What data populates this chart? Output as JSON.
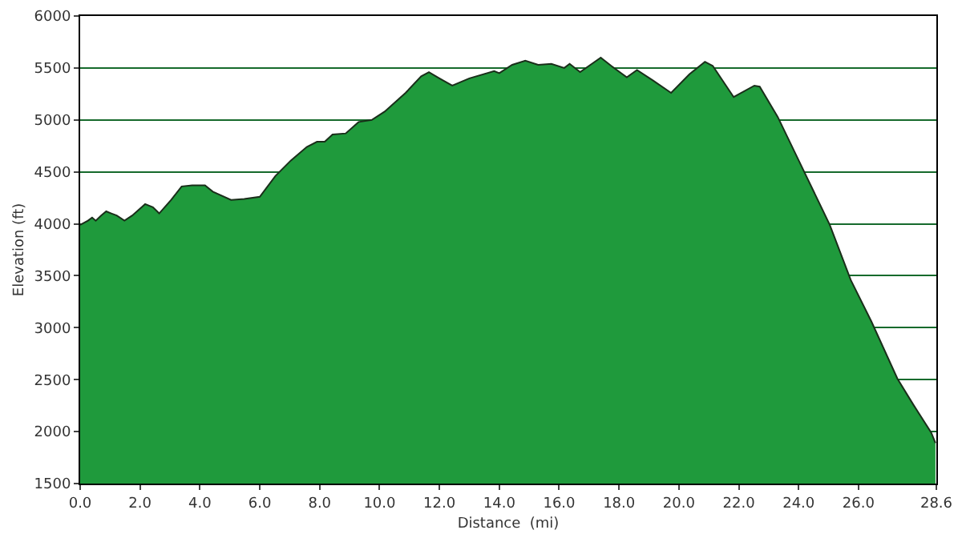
{
  "chart_data": {
    "type": "area",
    "xlabel": "Distance  (mi)",
    "ylabel": "Elevation (ft)",
    "x": [
      0,
      0.26,
      0.4,
      0.52,
      0.7,
      0.87,
      1.04,
      1.22,
      1.48,
      1.74,
      2.17,
      2.43,
      2.64,
      3.04,
      3.39,
      3.74,
      4.17,
      4.43,
      5.04,
      5.48,
      6.0,
      6.52,
      7.04,
      7.57,
      7.91,
      8.17,
      8.43,
      8.87,
      9.3,
      9.74,
      10.17,
      10.87,
      11.39,
      11.65,
      12.0,
      12.43,
      13.0,
      13.83,
      14.0,
      14.43,
      14.87,
      15.3,
      15.74,
      16.17,
      16.35,
      16.7,
      17.39,
      17.74,
      18.26,
      18.6,
      19.13,
      19.74,
      20.35,
      20.87,
      21.13,
      21.83,
      22.52,
      22.7,
      23.3,
      24.17,
      25.04,
      25.74,
      26.43,
      27.3,
      27.83,
      28.43,
      28.57
    ],
    "series": [
      {
        "color": "#1f9a3c",
        "values": [
          3990,
          4030,
          4060,
          4030,
          4080,
          4120,
          4100,
          4080,
          4030,
          4080,
          4190,
          4160,
          4100,
          4230,
          4360,
          4370,
          4370,
          4310,
          4230,
          4240,
          4260,
          4460,
          4610,
          4740,
          4790,
          4790,
          4860,
          4870,
          4980,
          5000,
          5080,
          5260,
          5420,
          5460,
          5400,
          5330,
          5400,
          5470,
          5450,
          5530,
          5570,
          5530,
          5540,
          5500,
          5540,
          5460,
          5600,
          5520,
          5410,
          5480,
          5380,
          5260,
          5440,
          5560,
          5520,
          5220,
          5330,
          5320,
          5030,
          4510,
          3990,
          3460,
          3060,
          2510,
          2260,
          1990,
          1890
        ]
      }
    ],
    "xlim": [
      0,
      28.6
    ],
    "xticks": [
      {
        "value": 0,
        "label": "0.0"
      },
      {
        "value": 2,
        "label": "2.0"
      },
      {
        "value": 4,
        "label": "4.0"
      },
      {
        "value": 6,
        "label": "6.0"
      },
      {
        "value": 8,
        "label": "8.0"
      },
      {
        "value": 10,
        "label": "10.0"
      },
      {
        "value": 12,
        "label": "12.0"
      },
      {
        "value": 14,
        "label": "14.0"
      },
      {
        "value": 16,
        "label": "16.0"
      },
      {
        "value": 18,
        "label": "18.0"
      },
      {
        "value": 20,
        "label": "20.0"
      },
      {
        "value": 22,
        "label": "22.0"
      },
      {
        "value": 24,
        "label": "24.0"
      },
      {
        "value": 26,
        "label": "26.0"
      },
      {
        "value": 28.6,
        "label": "28.6"
      }
    ],
    "ylim": [
      1500,
      6000
    ],
    "yticks": [
      1500,
      2000,
      2500,
      3000,
      3500,
      4000,
      4500,
      5000,
      5500,
      6000
    ],
    "grid": "y",
    "marker": "none",
    "line_style": "solid"
  }
}
